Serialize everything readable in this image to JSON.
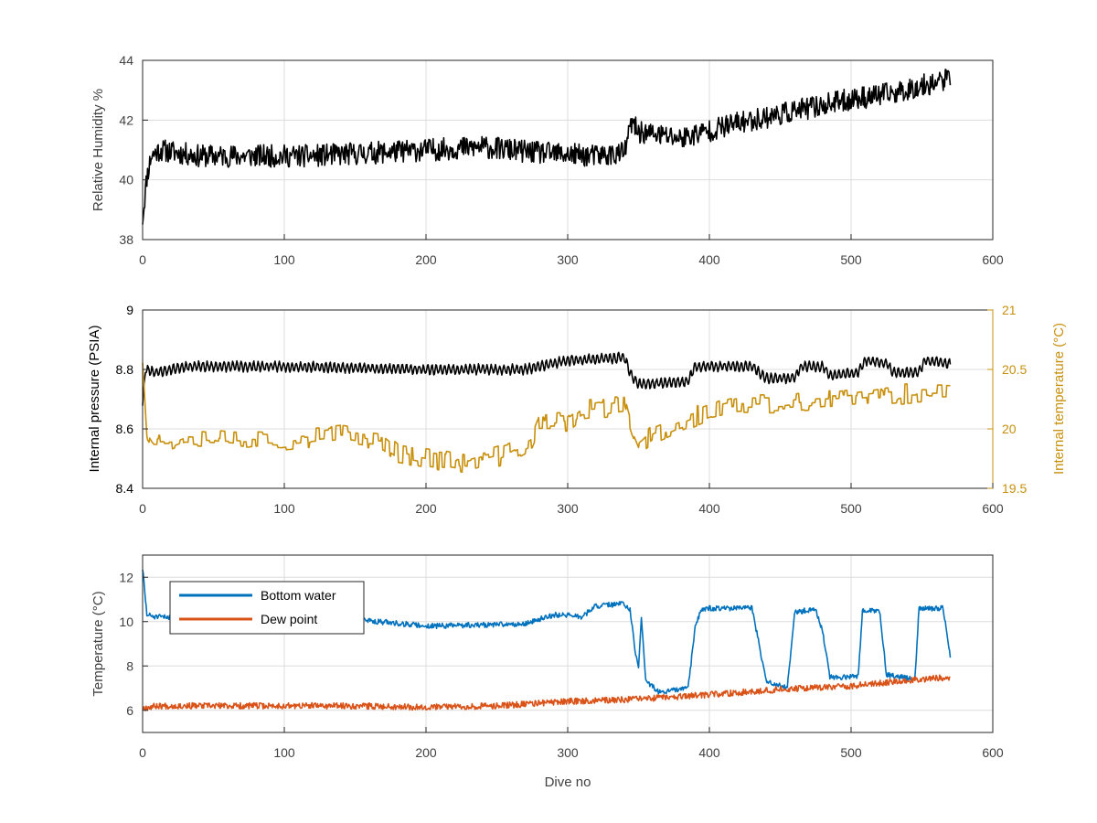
{
  "colors": {
    "black": "#000000",
    "gold": "#C8900C",
    "blue": "#0072BD",
    "orange": "#D95319",
    "grid": "#DCDCDC",
    "axis": "#262626",
    "text": "#404040"
  },
  "chart_data": [
    {
      "type": "line",
      "title": "",
      "xlabel": "",
      "ylabel": "Relative Humidity %",
      "xlim": [
        0,
        600
      ],
      "ylim": [
        38,
        44
      ],
      "xticks": [
        0,
        100,
        200,
        300,
        400,
        500,
        600
      ],
      "yticks": [
        38,
        40,
        42,
        44
      ],
      "grid": true,
      "series": [
        {
          "color": "black",
          "anchors": [
            [
              0,
              38.7
            ],
            [
              3,
              40.1
            ],
            [
              6,
              40.8
            ],
            [
              12,
              41.0
            ],
            [
              40,
              40.8
            ],
            [
              80,
              40.8
            ],
            [
              120,
              40.8
            ],
            [
              160,
              40.9
            ],
            [
              200,
              41.0
            ],
            [
              240,
              41.1
            ],
            [
              280,
              40.9
            ],
            [
              320,
              40.8
            ],
            [
              340,
              40.9
            ],
            [
              345,
              41.9
            ],
            [
              350,
              41.6
            ],
            [
              380,
              41.4
            ],
            [
              420,
              41.9
            ],
            [
              460,
              42.3
            ],
            [
              500,
              42.7
            ],
            [
              530,
              42.9
            ],
            [
              570,
              43.4
            ]
          ],
          "noise": 0.38,
          "seed": 11
        }
      ]
    },
    {
      "type": "line",
      "title": "",
      "xlabel": "",
      "ylabel": "Internal pressure (PSIA)",
      "ylabel_right": "Internal temperature (°C)",
      "xlim": [
        0,
        600
      ],
      "ylim": [
        8.4,
        9
      ],
      "ylim_right": [
        19.5,
        21
      ],
      "xticks": [
        0,
        100,
        200,
        300,
        400,
        500,
        600
      ],
      "yticks": [
        8.4,
        8.6,
        8.8,
        9
      ],
      "yticks_right": [
        19.5,
        20,
        20.5,
        21
      ],
      "yticklabels_right": [
        "19.5",
        "20",
        "20.5",
        "21"
      ],
      "grid": true,
      "series": [
        {
          "axis": "left",
          "color": "black",
          "anchors": [
            [
              0,
              8.68
            ],
            [
              2,
              8.8
            ],
            [
              10,
              8.79
            ],
            [
              30,
              8.81
            ],
            [
              100,
              8.81
            ],
            [
              200,
              8.8
            ],
            [
              270,
              8.8
            ],
            [
              290,
              8.82
            ],
            [
              300,
              8.83
            ],
            [
              340,
              8.84
            ],
            [
              345,
              8.78
            ],
            [
              350,
              8.75
            ],
            [
              385,
              8.76
            ],
            [
              390,
              8.81
            ],
            [
              430,
              8.81
            ],
            [
              440,
              8.77
            ],
            [
              460,
              8.77
            ],
            [
              465,
              8.81
            ],
            [
              480,
              8.81
            ],
            [
              485,
              8.78
            ],
            [
              505,
              8.79
            ],
            [
              510,
              8.83
            ],
            [
              525,
              8.82
            ],
            [
              530,
              8.79
            ],
            [
              548,
              8.79
            ],
            [
              552,
              8.83
            ],
            [
              570,
              8.82
            ]
          ],
          "noise": 0.015,
          "seed": 23
        },
        {
          "axis": "right",
          "color": "gold",
          "anchors": [
            [
              0,
              20.6
            ],
            [
              3,
              20.0
            ],
            [
              8,
              19.9
            ],
            [
              20,
              19.9
            ],
            [
              30,
              19.95
            ],
            [
              100,
              19.9
            ],
            [
              140,
              19.95
            ],
            [
              170,
              19.9
            ],
            [
              180,
              19.8
            ],
            [
              230,
              19.7
            ],
            [
              260,
              19.8
            ],
            [
              275,
              19.9
            ],
            [
              280,
              20.05
            ],
            [
              300,
              20.05
            ],
            [
              310,
              20.15
            ],
            [
              340,
              20.2
            ],
            [
              345,
              20.0
            ],
            [
              350,
              19.85
            ],
            [
              360,
              19.95
            ],
            [
              380,
              20.05
            ],
            [
              400,
              20.15
            ],
            [
              420,
              20.2
            ],
            [
              450,
              20.2
            ],
            [
              500,
              20.25
            ],
            [
              540,
              20.3
            ],
            [
              570,
              20.3
            ]
          ],
          "noise": 0.09,
          "seed": 37
        }
      ]
    },
    {
      "type": "line",
      "title": "",
      "xlabel": "Dive no",
      "ylabel": "Temperature (°C)",
      "xlim": [
        0,
        600
      ],
      "ylim": [
        5,
        13
      ],
      "xticks": [
        0,
        100,
        200,
        300,
        400,
        500,
        600
      ],
      "yticks": [
        6,
        8,
        10,
        12
      ],
      "grid": true,
      "legend": "top-left",
      "series": [
        {
          "name": "Bottom water",
          "color": "blue",
          "anchors": [
            [
              0,
              12.4
            ],
            [
              3,
              10.3
            ],
            [
              10,
              10.2
            ],
            [
              100,
              10.2
            ],
            [
              150,
              10.1
            ],
            [
              200,
              9.8
            ],
            [
              240,
              9.85
            ],
            [
              270,
              9.9
            ],
            [
              290,
              10.3
            ],
            [
              300,
              10.3
            ],
            [
              310,
              10.2
            ],
            [
              320,
              10.7
            ],
            [
              340,
              10.8
            ],
            [
              344,
              10.5
            ],
            [
              348,
              8.5
            ],
            [
              350,
              7.8
            ],
            [
              352,
              10.3
            ],
            [
              355,
              7.3
            ],
            [
              365,
              6.8
            ],
            [
              385,
              7.0
            ],
            [
              390,
              9.8
            ],
            [
              395,
              10.6
            ],
            [
              430,
              10.6
            ],
            [
              435,
              9.0
            ],
            [
              440,
              7.3
            ],
            [
              455,
              7.0
            ],
            [
              460,
              10.4
            ],
            [
              475,
              10.6
            ],
            [
              480,
              9.5
            ],
            [
              485,
              7.5
            ],
            [
              505,
              7.5
            ],
            [
              508,
              10.5
            ],
            [
              520,
              10.5
            ],
            [
              525,
              7.6
            ],
            [
              545,
              7.4
            ],
            [
              548,
              10.6
            ],
            [
              565,
              10.6
            ],
            [
              570,
              8.4
            ]
          ],
          "noise": 0.12,
          "seed": 51
        },
        {
          "name": "Dew point",
          "color": "orange",
          "anchors": [
            [
              0,
              6.1
            ],
            [
              10,
              6.2
            ],
            [
              100,
              6.2
            ],
            [
              150,
              6.2
            ],
            [
              200,
              6.15
            ],
            [
              250,
              6.2
            ],
            [
              300,
              6.4
            ],
            [
              350,
              6.5
            ],
            [
              400,
              6.7
            ],
            [
              450,
              6.95
            ],
            [
              500,
              7.1
            ],
            [
              540,
              7.35
            ],
            [
              570,
              7.5
            ]
          ],
          "noise": 0.14,
          "seed": 67
        }
      ]
    }
  ]
}
